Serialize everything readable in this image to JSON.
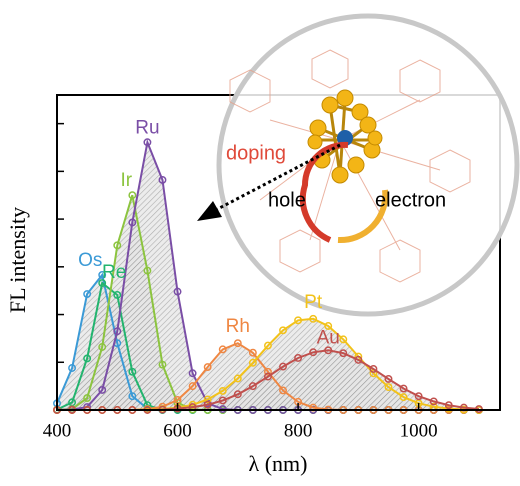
{
  "chart_data": {
    "type": "line",
    "xlabel": "λ (nm)",
    "ylabel": "FL intensity",
    "x": [
      400,
      425,
      450,
      475,
      500,
      525,
      550,
      575,
      600,
      625,
      650,
      675,
      700,
      725,
      750,
      775,
      800,
      825,
      850,
      875,
      900,
      925,
      950,
      975,
      1000,
      1025,
      1050,
      1075,
      1100
    ],
    "xlim": [
      400,
      1135
    ],
    "xticks": [
      400,
      600,
      800,
      1000
    ],
    "ylim": [
      0,
      6.6
    ],
    "yticks": [
      1,
      2,
      3,
      4,
      5,
      6
    ],
    "series": [
      {
        "name": "Os",
        "color": "#3b9ad6",
        "values": [
          0.14,
          0.88,
          2.43,
          2.83,
          1.4,
          0.29,
          0.03,
          0,
          0,
          0,
          0,
          0,
          0,
          0,
          0,
          0,
          0,
          0,
          0,
          0,
          0,
          0,
          0,
          0,
          0,
          0,
          0,
          0,
          0
        ]
      },
      {
        "name": "Re",
        "color": "#22b46e",
        "values": [
          0.01,
          0.16,
          1.08,
          2.66,
          2.41,
          0.8,
          0.1,
          0,
          0,
          0,
          0,
          0,
          0,
          0,
          0,
          0,
          0,
          0,
          0,
          0,
          0,
          0,
          0,
          0,
          0,
          0,
          0,
          0,
          0
        ]
      },
      {
        "name": "Ir",
        "color": "#8cc43f",
        "values": [
          0,
          0.02,
          0.25,
          1.32,
          3.45,
          4.5,
          2.92,
          0.95,
          0.15,
          0.01,
          0,
          0,
          0,
          0,
          0,
          0,
          0,
          0,
          0,
          0,
          0,
          0,
          0,
          0,
          0,
          0,
          0,
          0,
          0
        ]
      },
      {
        "name": "Ru",
        "color": "#7a4ea6",
        "values": [
          0,
          0.01,
          0.06,
          0.42,
          1.65,
          3.93,
          5.61,
          4.82,
          2.48,
          0.77,
          0.14,
          0.02,
          0,
          0,
          0,
          0,
          0,
          0,
          0,
          0,
          0,
          0,
          0,
          0,
          0,
          0,
          0,
          0,
          0
        ]
      },
      {
        "name": "Rh",
        "color": "#ef8743",
        "values": [
          0,
          0,
          0,
          0,
          0,
          0,
          0.02,
          0.07,
          0.21,
          0.5,
          0.9,
          1.27,
          1.4,
          1.2,
          0.8,
          0.41,
          0.17,
          0.05,
          0.01,
          0,
          0,
          0,
          0,
          0,
          0,
          0,
          0,
          0,
          0
        ]
      },
      {
        "name": "Pt",
        "color": "#f2c21a",
        "values": [
          0,
          0,
          0,
          0,
          0,
          0,
          0.01,
          0.02,
          0.05,
          0.11,
          0.22,
          0.4,
          0.66,
          0.99,
          1.35,
          1.67,
          1.88,
          1.91,
          1.76,
          1.48,
          1.12,
          0.77,
          0.48,
          0.27,
          0.14,
          0.07,
          0.03,
          0.01,
          0
        ]
      },
      {
        "name": "Au",
        "color": "#c0504d",
        "values": [
          0,
          0,
          0,
          0,
          0,
          0,
          0,
          0.01,
          0.03,
          0.06,
          0.11,
          0.2,
          0.33,
          0.5,
          0.7,
          0.91,
          1.09,
          1.21,
          1.25,
          1.19,
          1.05,
          0.86,
          0.65,
          0.45,
          0.29,
          0.18,
          0.1,
          0.05,
          0.02
        ]
      }
    ],
    "inset": {
      "doping": "doping",
      "hole": "hole",
      "electron": "electron"
    }
  }
}
